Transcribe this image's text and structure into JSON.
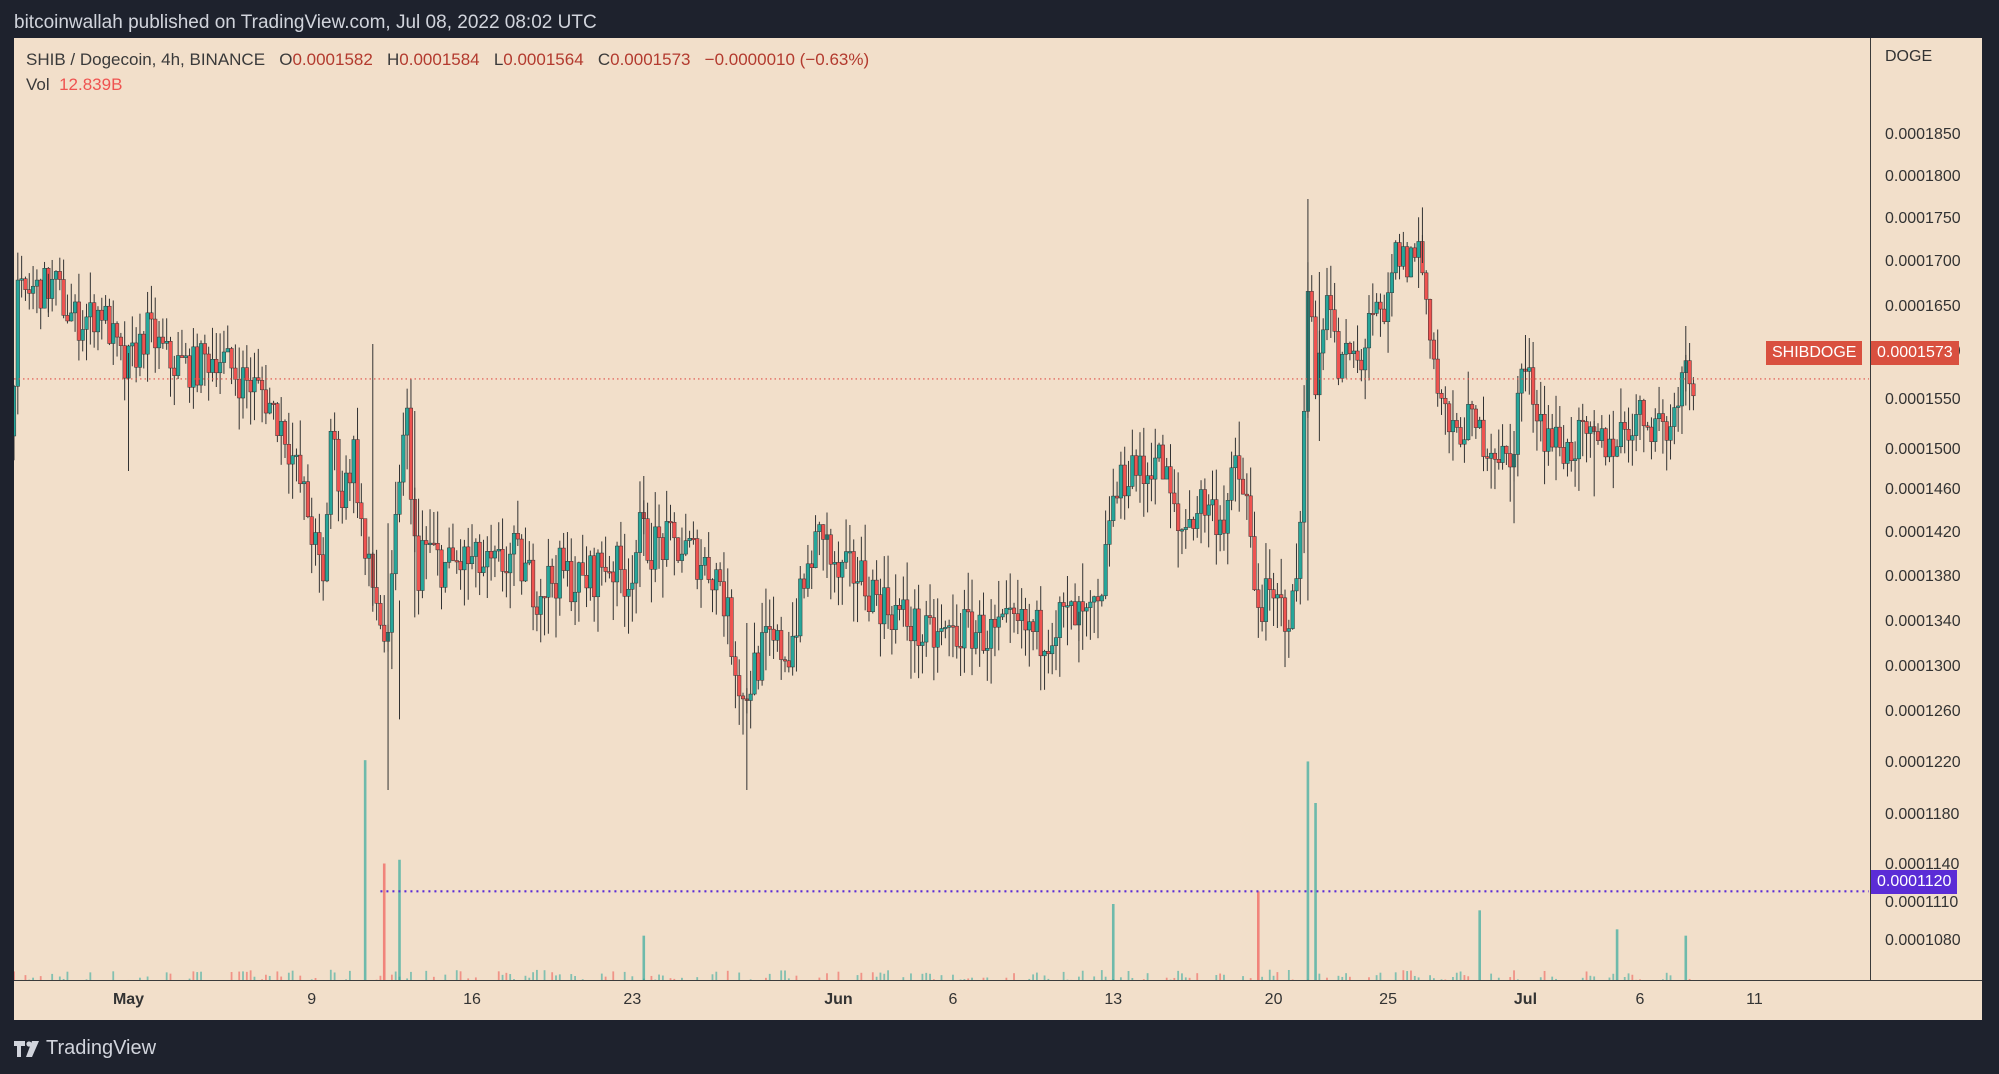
{
  "header": {
    "published": "bitcoinwallah published on TradingView.com, Jul 08, 2022 08:02 UTC"
  },
  "legend": {
    "symbol": "SHIB / Dogecoin, 4h, BINANCE",
    "o_label": "O",
    "o": "0.0001582",
    "h_label": "H",
    "h": "0.0001584",
    "l_label": "L",
    "l": "0.0001564",
    "c_label": "C",
    "c": "0.0001573",
    "change": "−0.0000010 (−0.63%)",
    "vol_label": "Vol",
    "vol": "12.839B"
  },
  "price_tag": {
    "name": "SHIBDOGE",
    "value": "0.0001573"
  },
  "level_tag": {
    "value": "0.0001120"
  },
  "brand": {
    "name": "TradingView"
  },
  "colors": {
    "up": "#26a69a",
    "down": "#ef5350",
    "background": "#f2dfca",
    "level": "#5b2cd6",
    "price_line": "#e0524a"
  },
  "chart_data": {
    "type": "candlestick",
    "interval": "4h",
    "y_unit": "DOGE",
    "y_ticks": [
      "0.0001850",
      "0.0001800",
      "0.0001750",
      "0.0001700",
      "0.0001650",
      "0.0001600",
      "0.0001550",
      "0.0001500",
      "0.0001460",
      "0.0001420",
      "0.0001380",
      "0.0001340",
      "0.0001300",
      "0.0001260",
      "0.0001220",
      "0.0001180",
      "0.0001140",
      "0.0001110",
      "0.0001080"
    ],
    "x_ticks": [
      {
        "label": "May",
        "date": "2022-05-01"
      },
      {
        "label": "9",
        "date": "2022-05-09"
      },
      {
        "label": "16",
        "date": "2022-05-16"
      },
      {
        "label": "23",
        "date": "2022-05-23"
      },
      {
        "label": "Jun",
        "date": "2022-06-01"
      },
      {
        "label": "6",
        "date": "2022-06-06"
      },
      {
        "label": "13",
        "date": "2022-06-13"
      },
      {
        "label": "20",
        "date": "2022-06-20"
      },
      {
        "label": "25",
        "date": "2022-06-25"
      },
      {
        "label": "Jul",
        "date": "2022-07-01"
      },
      {
        "label": "6",
        "date": "2022-07-06"
      },
      {
        "label": "11",
        "date": "2022-07-11"
      }
    ],
    "x_range": [
      "2022-04-26",
      "2022-07-16"
    ],
    "price_path": [
      [
        "2022-04-26",
        0.0001515
      ],
      [
        "2022-04-26T08",
        0.000166
      ],
      [
        "2022-04-27",
        0.000167
      ],
      [
        "2022-04-28",
        0.0001675
      ],
      [
        "2022-04-28T12",
        0.0001645
      ],
      [
        "2022-04-29",
        0.0001635
      ],
      [
        "2022-04-30",
        0.0001648
      ],
      [
        "2022-05-01",
        0.000158
      ],
      [
        "2022-05-02",
        0.0001625
      ],
      [
        "2022-05-03",
        0.000159
      ],
      [
        "2022-05-04",
        0.0001585
      ],
      [
        "2022-05-05",
        0.00016
      ],
      [
        "2022-05-06",
        0.0001575
      ],
      [
        "2022-05-07",
        0.000156
      ],
      [
        "2022-05-08",
        0.000152
      ],
      [
        "2022-05-09",
        0.000144
      ],
      [
        "2022-05-09T16",
        0.000137
      ],
      [
        "2022-05-10",
        0.000152
      ],
      [
        "2022-05-10T12",
        0.0001455
      ],
      [
        "2022-05-11",
        0.00015
      ],
      [
        "2022-05-11T12",
        0.0001395
      ],
      [
        "2022-05-12",
        0.000136
      ],
      [
        "2022-05-12T12",
        0.000131
      ],
      [
        "2022-05-13",
        0.000148
      ],
      [
        "2022-05-13T08",
        0.000153
      ],
      [
        "2022-05-13T20",
        0.0001355
      ],
      [
        "2022-05-14",
        0.000141
      ],
      [
        "2022-05-15",
        0.000139
      ],
      [
        "2022-05-16",
        0.0001395
      ],
      [
        "2022-05-17",
        0.0001385
      ],
      [
        "2022-05-18",
        0.00014
      ],
      [
        "2022-05-19",
        0.000137
      ],
      [
        "2022-05-20",
        0.0001385
      ],
      [
        "2022-05-21",
        0.0001375
      ],
      [
        "2022-05-22",
        0.0001395
      ],
      [
        "2022-05-23",
        0.000138
      ],
      [
        "2022-05-23T12",
        0.000142
      ],
      [
        "2022-05-24",
        0.000141
      ],
      [
        "2022-05-25",
        0.000141
      ],
      [
        "2022-05-26",
        0.00014
      ],
      [
        "2022-05-27",
        0.000138
      ],
      [
        "2022-05-28",
        0.000127
      ],
      [
        "2022-05-28T12",
        0.00013
      ],
      [
        "2022-05-29",
        0.000132
      ],
      [
        "2022-05-30",
        0.0001315
      ],
      [
        "2022-05-31",
        0.00014
      ],
      [
        "2022-05-31T12",
        0.0001425
      ],
      [
        "2022-06-01",
        0.000138
      ],
      [
        "2022-06-02",
        0.0001385
      ],
      [
        "2022-06-03",
        0.000136
      ],
      [
        "2022-06-04",
        0.0001345
      ],
      [
        "2022-06-05",
        0.0001325
      ],
      [
        "2022-06-06",
        0.000133
      ],
      [
        "2022-06-07",
        0.0001335
      ],
      [
        "2022-06-08",
        0.0001328
      ],
      [
        "2022-06-09",
        0.0001335
      ],
      [
        "2022-06-10",
        0.000133
      ],
      [
        "2022-06-11",
        0.0001345
      ],
      [
        "2022-06-12",
        0.000134
      ],
      [
        "2022-06-12T16",
        0.000135
      ],
      [
        "2022-06-13",
        0.000144
      ],
      [
        "2022-06-14",
        0.000149
      ],
      [
        "2022-06-14T12",
        0.000147
      ],
      [
        "2022-06-15",
        0.00015
      ],
      [
        "2022-06-15T12",
        0.000147
      ],
      [
        "2022-06-16",
        0.000142
      ],
      [
        "2022-06-17",
        0.000145
      ],
      [
        "2022-06-18",
        0.0001435
      ],
      [
        "2022-06-18T12",
        0.000148
      ],
      [
        "2022-06-19",
        0.000145
      ],
      [
        "2022-06-19T08",
        0.0001365
      ],
      [
        "2022-06-20",
        0.0001355
      ],
      [
        "2022-06-21",
        0.000135
      ],
      [
        "2022-06-21T08",
        0.000142
      ],
      [
        "2022-06-21T16",
        0.000169
      ],
      [
        "2022-06-22",
        0.000156
      ],
      [
        "2022-06-22T12",
        0.000168
      ],
      [
        "2022-06-23",
        0.000158
      ],
      [
        "2022-06-23T12",
        0.00016
      ],
      [
        "2022-06-24",
        0.000158
      ],
      [
        "2022-06-24T08",
        0.000165
      ],
      [
        "2022-06-25",
        0.0001625
      ],
      [
        "2022-06-25T12",
        0.000171
      ],
      [
        "2022-06-26",
        0.00017
      ],
      [
        "2022-06-26T12",
        0.000172
      ],
      [
        "2022-06-27",
        0.000163
      ],
      [
        "2022-06-27T08",
        0.000156
      ],
      [
        "2022-06-28",
        0.000151
      ],
      [
        "2022-06-28T12",
        0.000153
      ],
      [
        "2022-06-29",
        0.000152
      ],
      [
        "2022-06-30",
        0.00015
      ],
      [
        "2022-06-30T12",
        0.000148
      ],
      [
        "2022-07-01",
        0.0001585
      ],
      [
        "2022-07-01T12",
        0.000156
      ],
      [
        "2022-07-02",
        0.000152
      ],
      [
        "2022-07-03",
        0.00015
      ],
      [
        "2022-07-03T12",
        0.000151
      ],
      [
        "2022-07-04",
        0.0001505
      ],
      [
        "2022-07-05",
        0.000151
      ],
      [
        "2022-07-06",
        0.0001535
      ],
      [
        "2022-07-07",
        0.000153
      ],
      [
        "2022-07-07T12",
        0.000152
      ],
      [
        "2022-07-08",
        0.000159
      ],
      [
        "2022-07-08T08",
        0.0001573
      ]
    ],
    "wick_spikes": [
      [
        "2022-04-27T12",
        0.0001688,
        0.000164
      ],
      [
        "2022-05-01",
        0.00016,
        0.000148
      ],
      [
        "2022-05-11T16",
        0.000161,
        0.000135
      ],
      [
        "2022-05-12T08",
        0.000143,
        0.00012
      ],
      [
        "2022-05-12T20",
        0.000136,
        0.0001255
      ],
      [
        "2022-05-13T12",
        0.000154,
        0.0001345
      ],
      [
        "2022-05-23T12",
        0.0001475,
        0.00014
      ],
      [
        "2022-05-28",
        0.000134,
        0.00012
      ],
      [
        "2022-05-31T12",
        0.000144,
        0.000138
      ],
      [
        "2022-06-11T12",
        0.000135,
        0.0001305
      ],
      [
        "2022-06-21T12",
        0.0001775,
        0.000136
      ],
      [
        "2022-06-22",
        0.000169,
        0.000151
      ],
      [
        "2022-06-26T12",
        0.0001765,
        0.00017
      ],
      [
        "2022-07-01",
        0.000162,
        0.000156
      ],
      [
        "2022-06-30T12",
        0.000152,
        0.000143
      ],
      [
        "2022-07-04",
        0.000153,
        0.0001455
      ],
      [
        "2022-07-08",
        0.000163,
        0.000156
      ]
    ],
    "volume": {
      "spikes": [
        [
          "2022-05-11T08",
          0.0001223,
          "up"
        ],
        [
          "2022-05-12T04",
          0.0001142,
          "down"
        ],
        [
          "2022-05-12T20",
          0.0001145,
          "up"
        ],
        [
          "2022-05-23T12",
          0.0001085,
          "up"
        ],
        [
          "2022-06-13",
          0.000111,
          "up"
        ],
        [
          "2022-06-19T08",
          0.000112,
          "down"
        ],
        [
          "2022-06-21T12",
          0.0001222,
          "up"
        ],
        [
          "2022-06-21T20",
          0.000119,
          "up"
        ],
        [
          "2022-06-29",
          0.0001105,
          "up"
        ],
        [
          "2022-07-05",
          0.000109,
          "up"
        ],
        [
          "2022-07-08",
          0.0001085,
          "up"
        ]
      ],
      "floor": 0.0001055
    },
    "horizontal_levels": [
      {
        "value": 0.0001573,
        "style": "dotted",
        "color": "#e0524a",
        "from": "2022-04-26"
      },
      {
        "value": 0.000112,
        "style": "dotted",
        "color": "#5b2cd6",
        "from": "2022-05-12"
      }
    ]
  }
}
